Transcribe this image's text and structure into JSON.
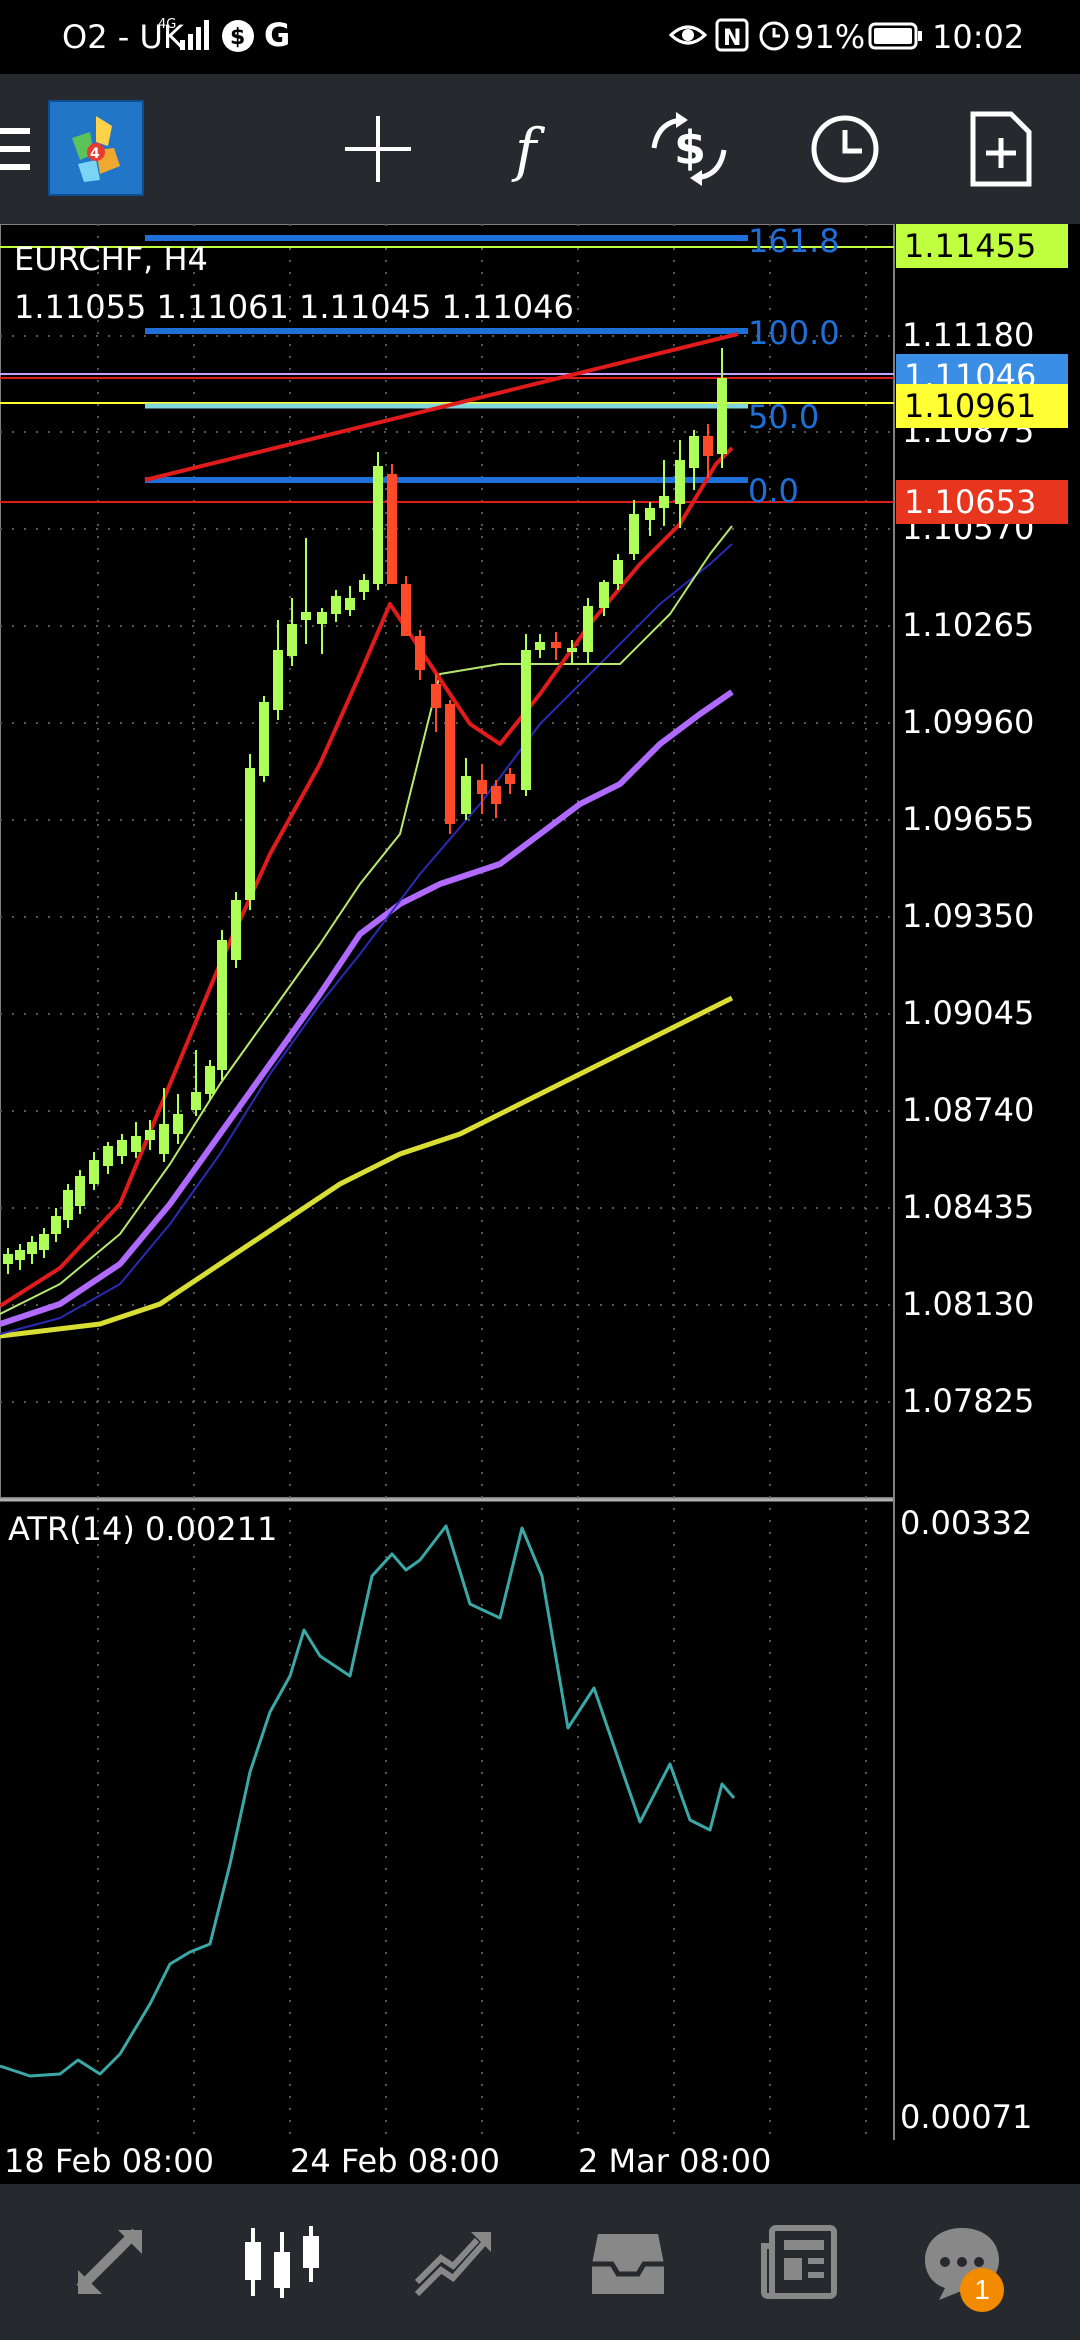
{
  "status_bar": {
    "carrier": "O2 - UK",
    "battery": "91%",
    "time": "10:02"
  },
  "toolbar": {
    "buttons": [
      "menu",
      "crosshair",
      "indicators",
      "trade",
      "history",
      "new-order"
    ]
  },
  "chart": {
    "symbol_title": "EURCHF, H4",
    "ohlc": "1.11055 1.11061 1.11045 1.11046",
    "price_scale": [
      "1.11180",
      "1.10875",
      "1.10570",
      "1.10265",
      "1.09960",
      "1.09655",
      "1.09350",
      "1.09045",
      "1.08740",
      "1.08435",
      "1.08130",
      "1.07825"
    ],
    "fib_levels": [
      {
        "label": "161.8",
        "color": "#1f6fd8"
      },
      {
        "label": "100.0",
        "color": "#1f6fd8"
      },
      {
        "label": "50.0",
        "color": "#80d6dc"
      },
      {
        "label": "0.0",
        "color": "#1f6fd8"
      }
    ],
    "price_tags": [
      {
        "value": "1.11455",
        "bg": "#c0ff40",
        "fg": "#000000"
      },
      {
        "value": "1.11046",
        "bg": "#3a8ee6",
        "fg": "#ffffff"
      },
      {
        "value": "1.10961",
        "bg": "#ffff33",
        "fg": "#000000"
      },
      {
        "value": "1.10653",
        "bg": "#e8351e",
        "fg": "#ffffff"
      }
    ],
    "date_axis": [
      "18 Feb 08:00",
      "24 Feb 08:00",
      "2 Mar 08:00"
    ],
    "colors": {
      "bull": "#adff57",
      "bear": "#ff4a2a",
      "ma_red": "#e01b1b",
      "ma_lightgreen": "#b7e96d",
      "ma_blue": "#2a2ab5",
      "ma_violet": "#b06aff",
      "ma_yellow": "#d8de33",
      "atr": "#3aa8a6"
    }
  },
  "indicator": {
    "label": "ATR(14) 0.00211",
    "scale_top": "0.00332",
    "scale_bottom": "0.00071"
  },
  "bottom_nav": {
    "items": [
      "quotes",
      "chart",
      "trade",
      "history",
      "news",
      "messages"
    ],
    "badge": "1"
  }
}
